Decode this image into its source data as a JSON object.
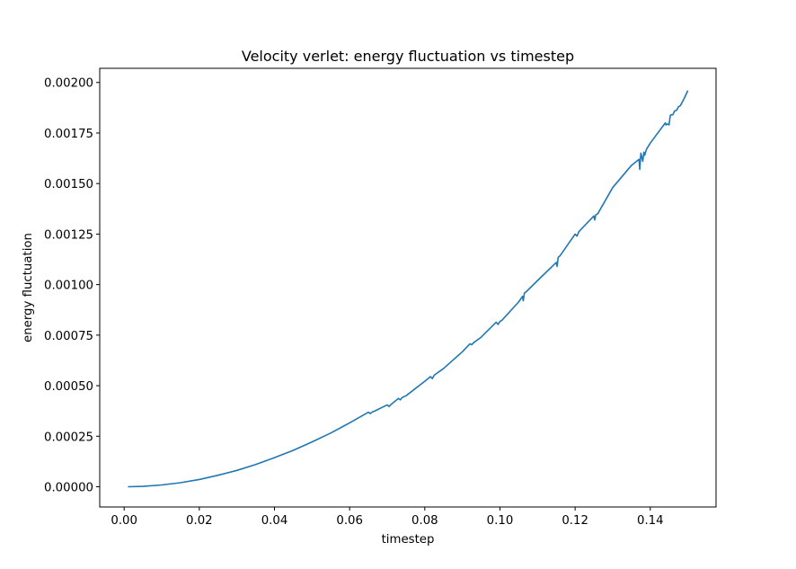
{
  "chart_data": {
    "type": "line",
    "title": "Velocity verlet: energy fluctuation vs timestep",
    "xlabel": "timestep",
    "ylabel": "energy fluctuation",
    "xlim": [
      -0.0065,
      0.1575
    ],
    "ylim": [
      -0.0001,
      0.00207
    ],
    "xticks": [
      0.0,
      0.02,
      0.04,
      0.06,
      0.08,
      0.1,
      0.12,
      0.14
    ],
    "xtick_labels": [
      "0.00",
      "0.02",
      "0.04",
      "0.06",
      "0.08",
      "0.10",
      "0.12",
      "0.14"
    ],
    "yticks": [
      0.0,
      0.00025,
      0.0005,
      0.00075,
      0.001,
      0.00125,
      0.0015,
      0.00175,
      0.002
    ],
    "ytick_labels": [
      "0.00000",
      "0.00025",
      "0.00050",
      "0.00075",
      "0.00100",
      "0.00125",
      "0.00150",
      "0.00175",
      "0.00200"
    ],
    "grid": false,
    "series": [
      {
        "color": "#1f77b4",
        "x": [
          0.001,
          0.005,
          0.01,
          0.015,
          0.02,
          0.025,
          0.03,
          0.035,
          0.04,
          0.045,
          0.05,
          0.055,
          0.06,
          0.065,
          0.0655,
          0.066,
          0.0665,
          0.07,
          0.0705,
          0.071,
          0.073,
          0.0735,
          0.074,
          0.075,
          0.08,
          0.0815,
          0.082,
          0.0825,
          0.085,
          0.09,
          0.092,
          0.0925,
          0.093,
          0.095,
          0.099,
          0.0995,
          0.1,
          0.1005,
          0.105,
          0.106,
          0.1062,
          0.1065,
          0.107,
          0.11,
          0.115,
          0.1152,
          0.1155,
          0.116,
          0.12,
          0.1205,
          0.121,
          0.125,
          0.1252,
          0.1255,
          0.126,
          0.13,
          0.135,
          0.137,
          0.1372,
          0.1375,
          0.138,
          0.1383,
          0.1385,
          0.139,
          0.14,
          0.144,
          0.1442,
          0.1445,
          0.145,
          0.1453,
          0.1455,
          0.146,
          0.1465,
          0.147,
          0.1475,
          0.148,
          0.149,
          0.15
        ],
        "y": [
          0.0,
          2e-06,
          9e-06,
          2e-05,
          3.6e-05,
          5.7e-05,
          8.1e-05,
          0.00011,
          0.000144,
          0.00018,
          0.000222,
          0.000266,
          0.000316,
          0.000369,
          0.000362,
          0.00037,
          0.000373,
          0.000405,
          0.000397,
          0.000407,
          0.000437,
          0.00043,
          0.000442,
          0.00045,
          0.000522,
          0.000545,
          0.000535,
          0.000552,
          0.000585,
          0.000668,
          0.000707,
          0.000703,
          0.000713,
          0.00074,
          0.000814,
          0.000803,
          0.000818,
          0.000823,
          0.000915,
          0.000942,
          0.00092,
          0.000958,
          0.000965,
          0.00102,
          0.00111,
          0.00109,
          0.001135,
          0.001143,
          0.00125,
          0.00124,
          0.001262,
          0.00134,
          0.00132,
          0.001345,
          0.00135,
          0.00148,
          0.00159,
          0.00162,
          0.00157,
          0.00165,
          0.00161,
          0.001655,
          0.00164,
          0.00167,
          0.0017,
          0.0018,
          0.00179,
          0.001795,
          0.00179,
          0.001835,
          0.00184,
          0.00184,
          0.00186,
          0.001862,
          0.00188,
          0.001885,
          0.00192,
          0.00196
        ]
      }
    ]
  }
}
